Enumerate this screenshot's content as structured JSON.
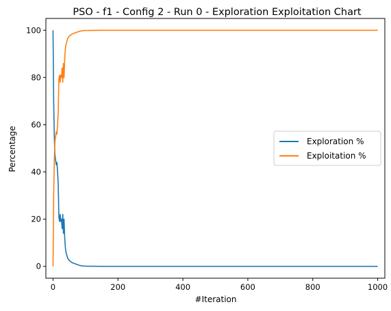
{
  "chart_data": {
    "type": "line",
    "title": "PSO - f1 - Config 2 - Run 0 - Exploration Exploitation Chart",
    "xlabel": "#Iteration",
    "ylabel": "Percentage",
    "xlim": [
      -22,
      1022
    ],
    "ylim": [
      -5,
      105
    ],
    "xticks": [
      0,
      200,
      400,
      600,
      800,
      1000
    ],
    "yticks": [
      0,
      20,
      40,
      60,
      80,
      100
    ],
    "grid": false,
    "legend_placement": "center-right",
    "series": [
      {
        "name": "Exploration %",
        "color": "#1f77b4",
        "points": [
          [
            0,
            100
          ],
          [
            2,
            70
          ],
          [
            4,
            55
          ],
          [
            6,
            47
          ],
          [
            8,
            45
          ],
          [
            10,
            43
          ],
          [
            12,
            44
          ],
          [
            14,
            40
          ],
          [
            16,
            35
          ],
          [
            18,
            21
          ],
          [
            20,
            19
          ],
          [
            22,
            22
          ],
          [
            24,
            19
          ],
          [
            26,
            20
          ],
          [
            28,
            16
          ],
          [
            30,
            22
          ],
          [
            32,
            14
          ],
          [
            34,
            20
          ],
          [
            36,
            12
          ],
          [
            38,
            8
          ],
          [
            40,
            6
          ],
          [
            45,
            3.5
          ],
          [
            50,
            2.5
          ],
          [
            55,
            2
          ],
          [
            60,
            1.5
          ],
          [
            70,
            1
          ],
          [
            80,
            0.5
          ],
          [
            90,
            0.2
          ],
          [
            100,
            0.1
          ],
          [
            150,
            0
          ],
          [
            1000,
            0
          ]
        ]
      },
      {
        "name": "Exploitation %",
        "color": "#ff7f0e",
        "points": [
          [
            0,
            0
          ],
          [
            2,
            30
          ],
          [
            4,
            45
          ],
          [
            6,
            53
          ],
          [
            8,
            55
          ],
          [
            10,
            57
          ],
          [
            12,
            56
          ],
          [
            14,
            60
          ],
          [
            16,
            65
          ],
          [
            18,
            79
          ],
          [
            20,
            81
          ],
          [
            22,
            78
          ],
          [
            24,
            81
          ],
          [
            26,
            80
          ],
          [
            28,
            84
          ],
          [
            30,
            78
          ],
          [
            32,
            86
          ],
          [
            34,
            80
          ],
          [
            36,
            88
          ],
          [
            38,
            92
          ],
          [
            40,
            94
          ],
          [
            45,
            96.5
          ],
          [
            50,
            97.5
          ],
          [
            55,
            98
          ],
          [
            60,
            98.5
          ],
          [
            70,
            99
          ],
          [
            80,
            99.5
          ],
          [
            90,
            99.8
          ],
          [
            100,
            99.9
          ],
          [
            150,
            100
          ],
          [
            1000,
            100
          ]
        ]
      }
    ]
  }
}
